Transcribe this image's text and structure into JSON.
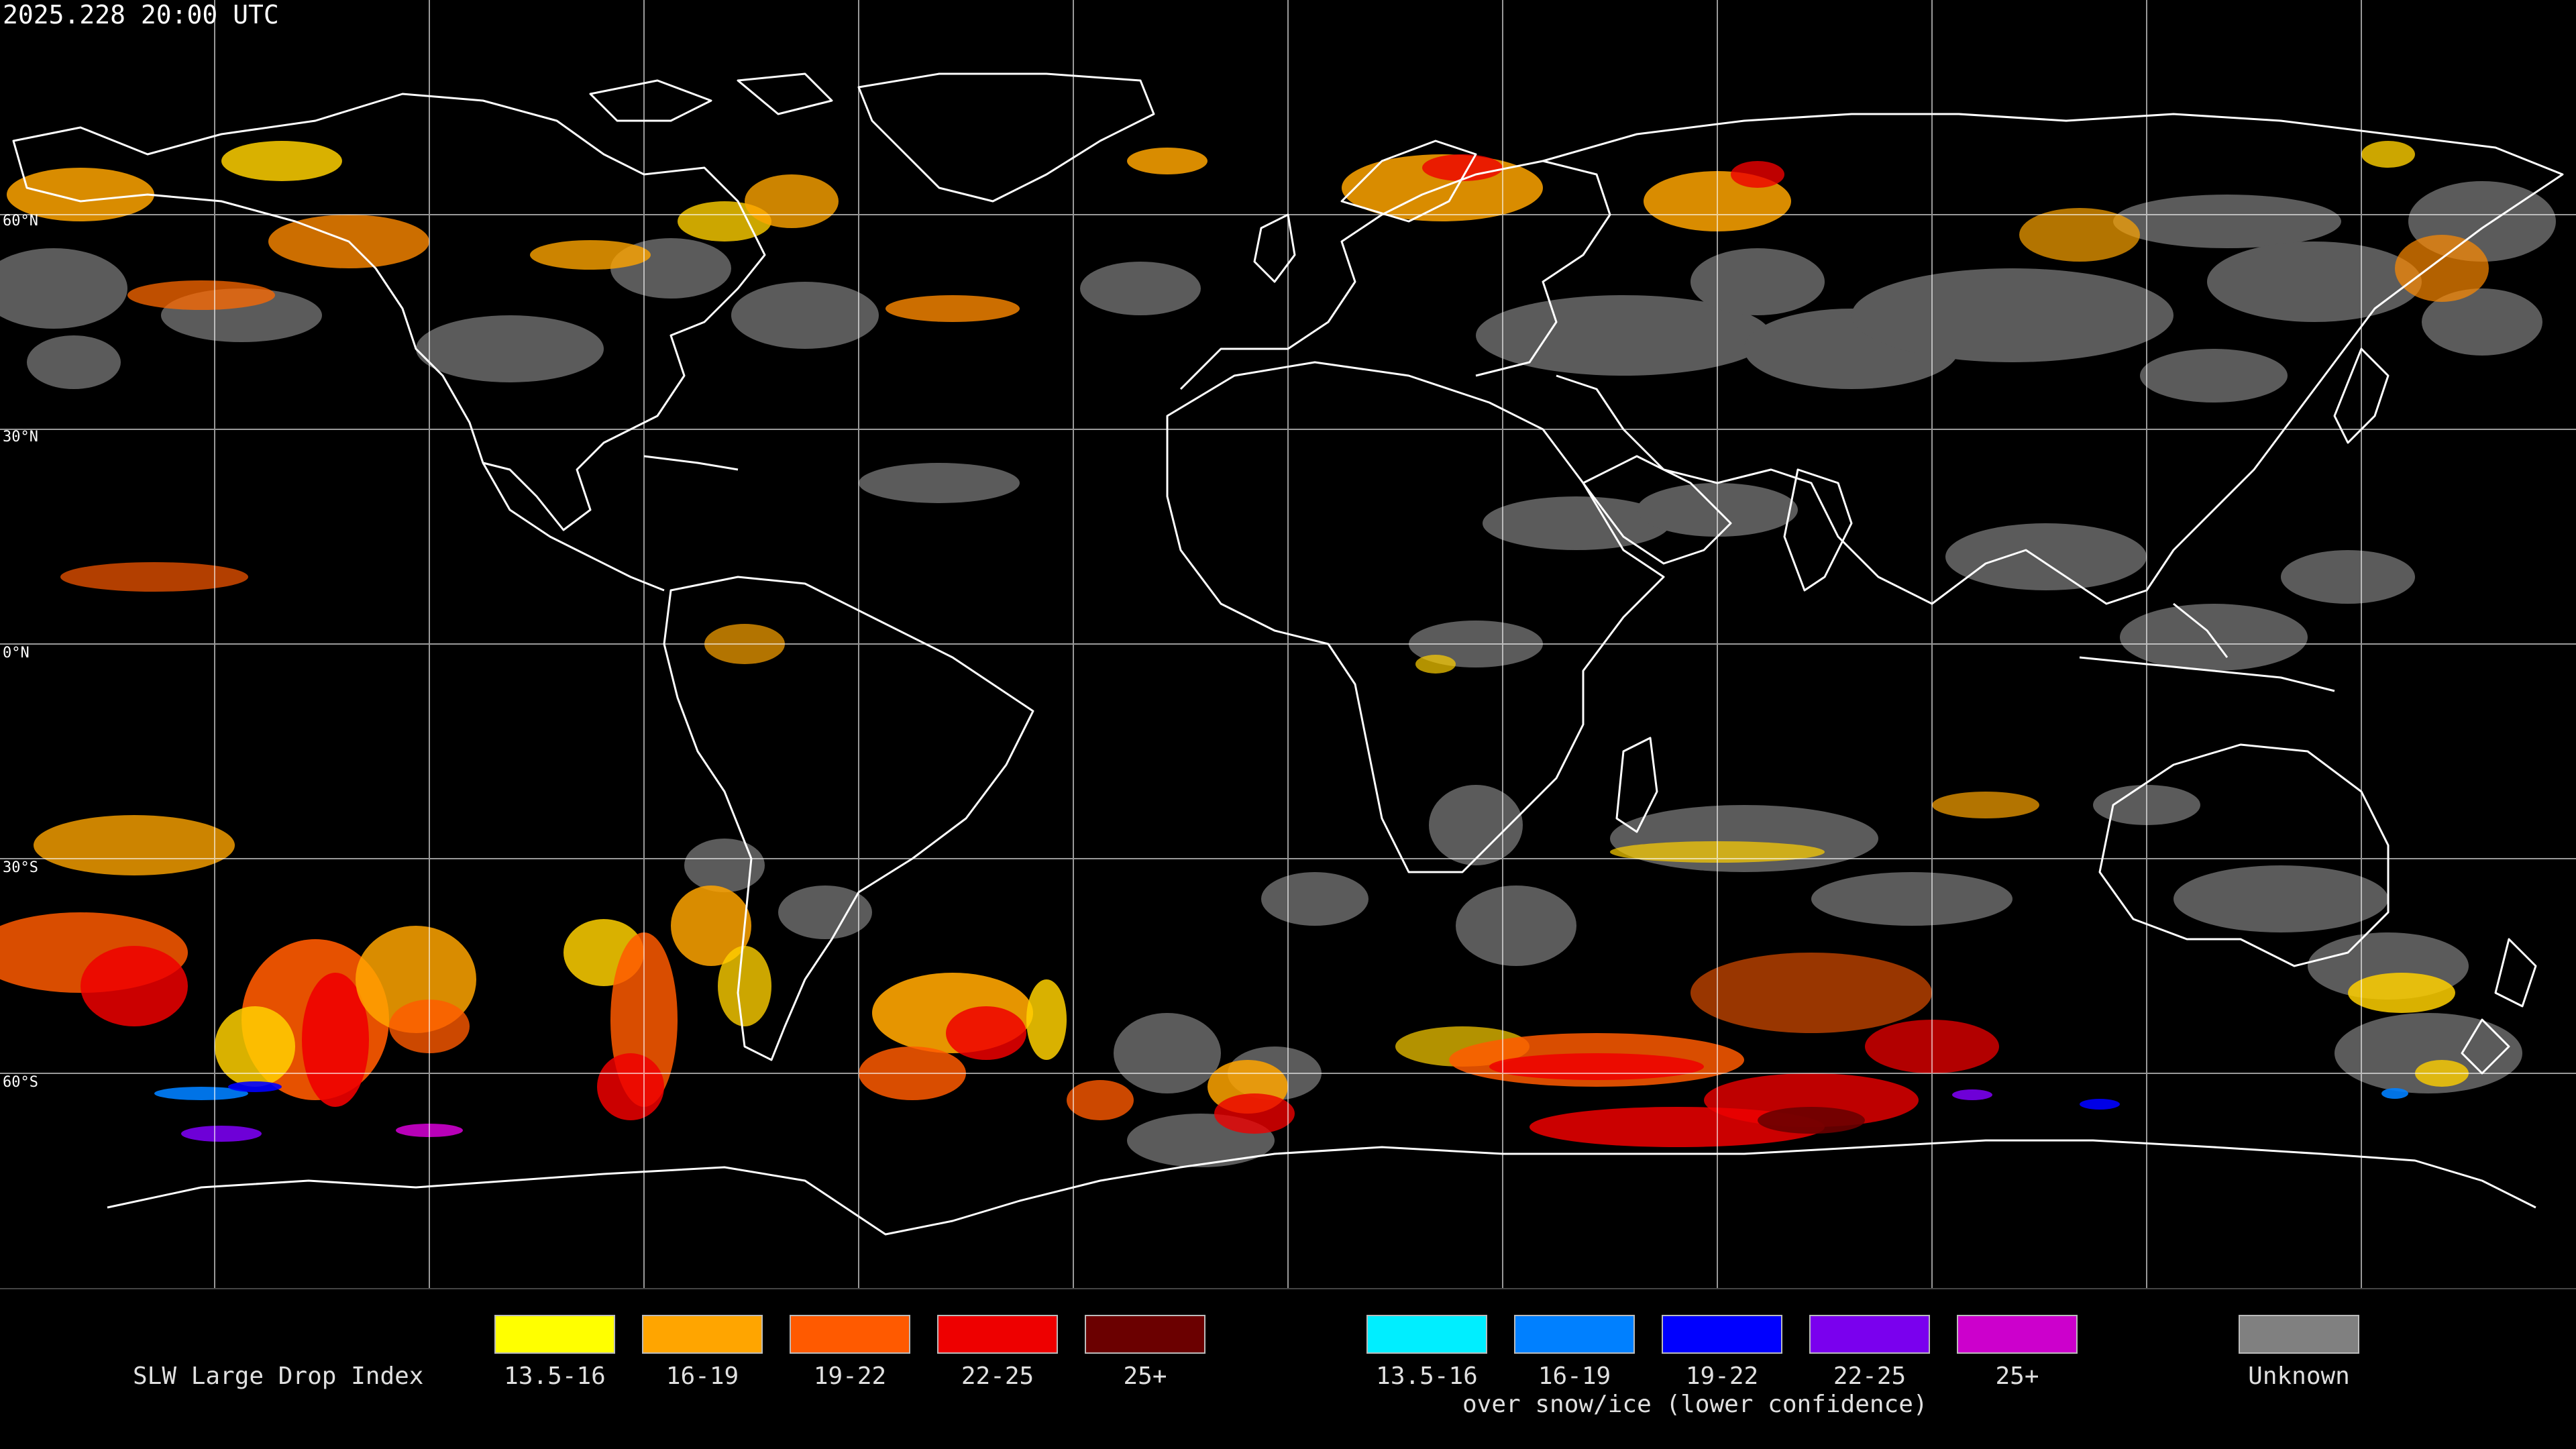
{
  "header": {
    "timestamp": "2025.228 20:00 UTC"
  },
  "map": {
    "latitude_labels": {
      "lat_60n": "60°N",
      "lat_30n": "30°N",
      "lat_0n": "0°N",
      "lat_30s": "30°S",
      "lat_60s": "60°S"
    },
    "colors": {
      "background": "#000000",
      "coastline": "#ffffff",
      "graticule": "#ffffff",
      "unknown": "#808080"
    }
  },
  "legend": {
    "title": "SLW Large Drop Index",
    "primary": [
      {
        "label": "13.5-16",
        "color": "#ffff00"
      },
      {
        "label": "16-19",
        "color": "#ffa500"
      },
      {
        "label": "19-22",
        "color": "#ff5a00"
      },
      {
        "label": "22-25",
        "color": "#ee0000"
      },
      {
        "label": "25+",
        "color": "#6b0000"
      }
    ],
    "snow_ice": [
      {
        "label": "13.5-16",
        "color": "#00eeff"
      },
      {
        "label": "16-19",
        "color": "#0080ff"
      },
      {
        "label": "19-22",
        "color": "#0000ff"
      },
      {
        "label": "22-25",
        "color": "#7a00ee"
      },
      {
        "label": "25+",
        "color": "#cc00cc"
      }
    ],
    "snow_ice_note": "over snow/ice (lower confidence)",
    "unknown": {
      "label": "Unknown",
      "color": "#808080"
    }
  }
}
